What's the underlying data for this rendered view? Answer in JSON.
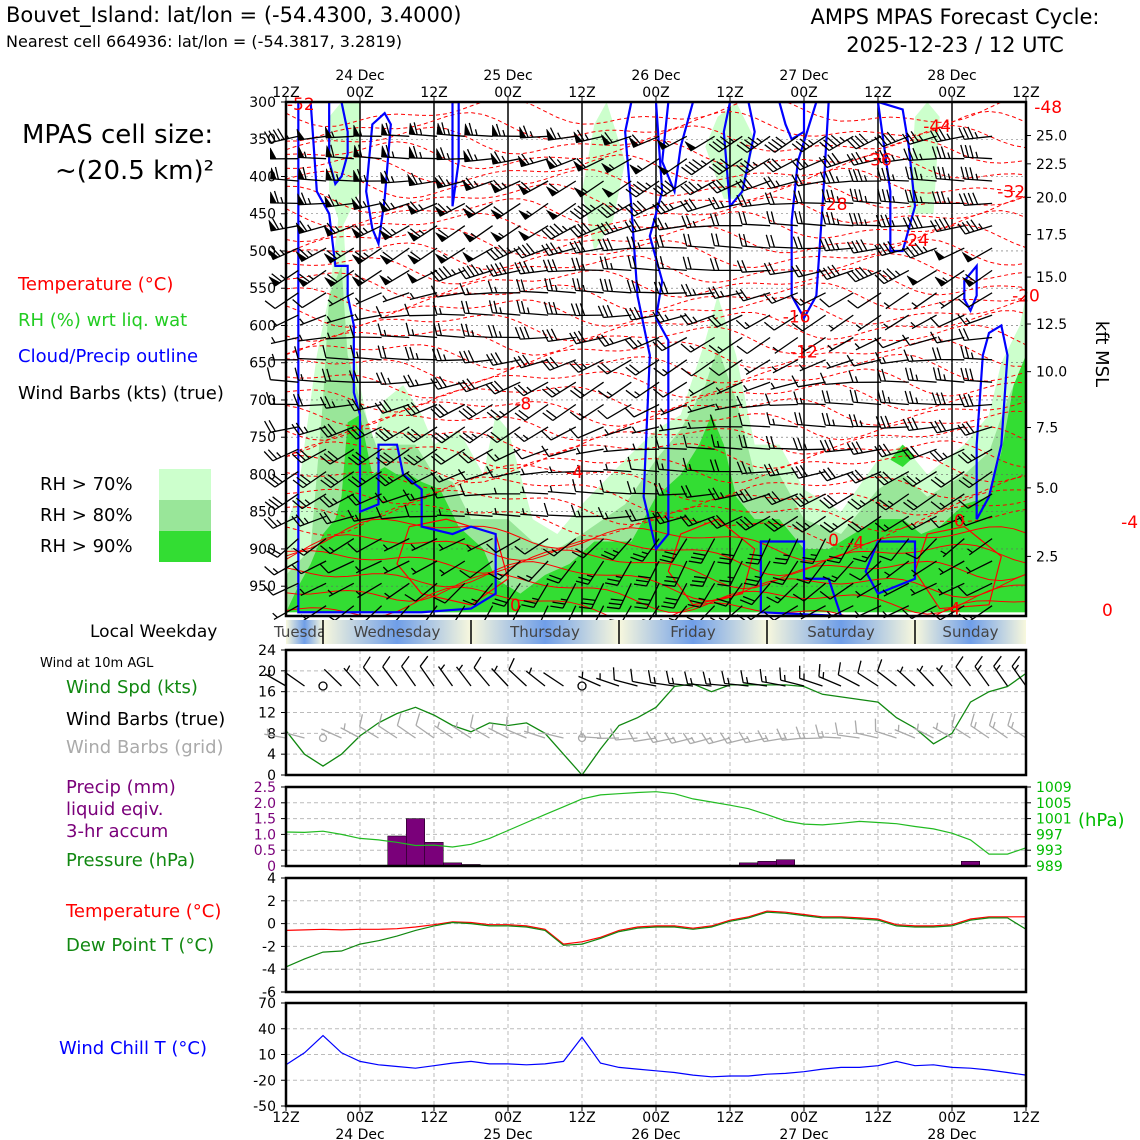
{
  "header": {
    "location_line": "Bouvet_Island: lat/lon = (-54.4300, 3.4000)",
    "nearest_line": "Nearest cell 664936: lat/lon = (-54.3817, 3.2819)",
    "forecast_title": "AMPS MPAS Forecast Cycle:",
    "forecast_cycle": "2025-12-23 / 12 UTC"
  },
  "cell_size": {
    "line1": "MPAS cell size:",
    "line2": "~(20.5 km)²"
  },
  "legend": {
    "temperature": "Temperature (°C)",
    "rh": "RH (%) wrt liq. wat",
    "cloud": "Cloud/Precip outline",
    "barbs": "Wind Barbs (kts) (true)",
    "rh70": "RH > 70%",
    "rh80": "RH > 80%",
    "rh90": "RH > 90%"
  },
  "colors": {
    "temperature": "#ff0000",
    "rh": "#22cc22",
    "cloud": "#0000ff",
    "rh70": "#ccffcc",
    "rh80": "#99e699",
    "rh90": "#33dd33",
    "precip": "#7a007a",
    "pressure": "#118811",
    "grey": "#aaaaaa"
  },
  "time_axis": {
    "ticks": [
      "12Z",
      "00Z",
      "12Z",
      "00Z",
      "12Z",
      "00Z",
      "12Z",
      "00Z",
      "12Z",
      "00Z",
      "12Z"
    ],
    "dates": [
      "24 Dec",
      "25 Dec",
      "26 Dec",
      "27 Dec",
      "28 Dec"
    ]
  },
  "weekdays": {
    "label": "Local Weekday",
    "days": [
      "Tuesday",
      "Wednesday",
      "Thursday",
      "Friday",
      "Saturday",
      "Sunday"
    ]
  },
  "profile": {
    "pressure_levels": [
      300,
      350,
      400,
      450,
      500,
      550,
      600,
      650,
      700,
      750,
      800,
      850,
      900,
      950
    ],
    "kft_ticks": [
      "25.0",
      "22.5",
      "20.0",
      "17.5",
      "15.0",
      "12.5",
      "10.0",
      "7.5",
      "5.0",
      "2.5"
    ],
    "kft_pressure": [
      345,
      383,
      428,
      478,
      535,
      598,
      662,
      737,
      818,
      910
    ],
    "kft_label": "kft MSL",
    "temp_labels": [
      {
        "text": "-52",
        "t": 0.2,
        "p": 303
      },
      {
        "text": "-48",
        "t": 10.3,
        "p": 307
      },
      {
        "text": "-44",
        "t": 8.8,
        "p": 332
      },
      {
        "text": "-36",
        "t": 8.0,
        "p": 377
      },
      {
        "text": "-32",
        "t": 9.8,
        "p": 420
      },
      {
        "text": "-28",
        "t": 7.4,
        "p": 437
      },
      {
        "text": "-24",
        "t": 8.5,
        "p": 485
      },
      {
        "text": "-20",
        "t": 10.0,
        "p": 560
      },
      {
        "text": "-16",
        "t": 6.9,
        "p": 588
      },
      {
        "text": "-12",
        "t": 7.0,
        "p": 635
      },
      {
        "text": "-8",
        "t": 3.2,
        "p": 705
      },
      {
        "text": "-4",
        "t": 3.9,
        "p": 797
      },
      {
        "text": "0",
        "t": 9.1,
        "p": 862
      },
      {
        "text": "-4",
        "t": 11.4,
        "p": 864
      },
      {
        "text": "0",
        "t": 7.4,
        "p": 888
      },
      {
        "text": "-4",
        "t": 7.7,
        "p": 891
      },
      {
        "text": "0",
        "t": 3.1,
        "p": 975
      },
      {
        "text": "-4",
        "t": 9.0,
        "p": 980
      },
      {
        "text": "0",
        "t": 11.1,
        "p": 982
      }
    ]
  },
  "wind10m": {
    "title": "Wind at 10m AGL",
    "spd_label": "Wind Spd (kts)",
    "barbs_true": "Wind Barbs (true)",
    "barbs_grid": "Wind Barbs (grid)",
    "yticks": [
      "0",
      "4",
      "8",
      "12",
      "16",
      "20",
      "24"
    ]
  },
  "precip_panel": {
    "l1": "Precip (mm)",
    "l2": "liquid eqiv.",
    "l3": "3-hr accum",
    "pressure_label": "Pressure (hPa)",
    "left_ticks": [
      "0",
      "0.5",
      "1.0",
      "1.5",
      "2.0",
      "2.5"
    ],
    "right_ticks": [
      "989",
      "993",
      "997",
      "1001",
      "1005",
      "1009"
    ],
    "right_unit": "(hPa)"
  },
  "temp_panel": {
    "temp_label": "Temperature (°C)",
    "dew_label": "Dew Point T (°C)",
    "yticks": [
      "-6",
      "-4",
      "-2",
      "0",
      "2",
      "4"
    ]
  },
  "chill_panel": {
    "label": "Wind Chill T (°C)",
    "yticks": [
      "-50",
      "-20",
      "10",
      "40",
      "70"
    ]
  },
  "chart_data": [
    {
      "type": "line",
      "title": "Wind at 10m AGL",
      "x_hours": [
        0,
        3,
        6,
        9,
        12,
        15,
        18,
        21,
        24,
        27,
        30,
        33,
        36,
        39,
        42,
        45,
        48,
        51,
        54,
        57,
        60,
        63,
        66,
        69,
        72,
        75,
        78,
        81,
        84,
        87,
        90,
        93,
        96,
        99,
        102,
        105,
        108,
        111,
        114,
        117,
        120
      ],
      "series": [
        {
          "name": "Wind Spd (kts)",
          "values": [
            8.5,
            4,
            1.7,
            4,
            7.5,
            10,
            11.8,
            13,
            11.5,
            9.5,
            8.3,
            10,
            9.5,
            10,
            8,
            4,
            0,
            5,
            9.5,
            11,
            13,
            17,
            17.5,
            16,
            17.3,
            17.3,
            17.3,
            17.3,
            17,
            15.5,
            15,
            14.5,
            14,
            11,
            9,
            6,
            8,
            14,
            16,
            17,
            19.5
          ]
        }
      ],
      "ylim": [
        0,
        24
      ]
    },
    {
      "type": "bar",
      "title": "Precip (mm) liquid eqiv. 3-hr accum",
      "x_hours": [
        18,
        21,
        24,
        27,
        30,
        75,
        78,
        81,
        111
      ],
      "values": [
        0.95,
        1.5,
        0.75,
        0.1,
        0.05,
        0.1,
        0.15,
        0.2,
        0.15
      ],
      "ylim": [
        0,
        2.5
      ]
    },
    {
      "type": "line",
      "title": "Pressure (hPa)",
      "x_hours": [
        0,
        3,
        6,
        9,
        12,
        15,
        18,
        21,
        24,
        27,
        30,
        33,
        36,
        39,
        42,
        45,
        48,
        51,
        54,
        57,
        60,
        63,
        66,
        69,
        72,
        75,
        78,
        81,
        84,
        87,
        90,
        93,
        96,
        99,
        102,
        105,
        108,
        111,
        114,
        117,
        120
      ],
      "series": [
        {
          "name": "Pressure (hPa)",
          "values": [
            997.6,
            997.5,
            997.8,
            997,
            996,
            995.6,
            995,
            994.2,
            994.3,
            993.8,
            994.5,
            996,
            998,
            1000,
            1002,
            1004,
            1006,
            1007,
            1007.3,
            1007.6,
            1007.8,
            1007.3,
            1006,
            1005.2,
            1004.4,
            1003.5,
            1002,
            1000.4,
            999.6,
            999.4,
            999.8,
            1000.3,
            1000,
            999.7,
            999,
            998.4,
            997.3,
            995.6,
            992,
            992,
            993.6
          ]
        }
      ],
      "ylim": [
        989,
        1009
      ]
    },
    {
      "type": "line",
      "title": "Temperature / Dew Point",
      "x_hours": [
        0,
        3,
        6,
        9,
        12,
        15,
        18,
        21,
        24,
        27,
        30,
        33,
        36,
        39,
        42,
        45,
        48,
        51,
        54,
        57,
        60,
        63,
        66,
        69,
        72,
        75,
        78,
        81,
        84,
        87,
        90,
        93,
        96,
        99,
        102,
        105,
        108,
        111,
        114,
        117,
        120
      ],
      "series": [
        {
          "name": "Temperature (°C)",
          "values": [
            -0.6,
            -0.55,
            -0.5,
            -0.55,
            -0.5,
            -0.5,
            -0.45,
            -0.3,
            -0.1,
            0.15,
            0.1,
            -0.1,
            -0.1,
            -0.2,
            -0.5,
            -1.8,
            -1.6,
            -1.2,
            -0.6,
            -0.3,
            -0.2,
            -0.2,
            -0.4,
            -0.2,
            0.3,
            0.6,
            1.1,
            1.0,
            0.8,
            0.6,
            0.6,
            0.5,
            0.4,
            -0.1,
            -0.2,
            -0.2,
            -0.1,
            0.4,
            0.6,
            0.6,
            0.6
          ]
        },
        {
          "name": "Dew Point T (°C)",
          "values": [
            -3.8,
            -3.1,
            -2.5,
            -2.4,
            -1.8,
            -1.5,
            -1.1,
            -0.6,
            -0.2,
            0.1,
            0,
            -0.2,
            -0.2,
            -0.3,
            -0.6,
            -1.9,
            -1.8,
            -1.3,
            -0.7,
            -0.4,
            -0.3,
            -0.3,
            -0.5,
            -0.3,
            0.2,
            0.5,
            1.0,
            0.9,
            0.7,
            0.5,
            0.5,
            0.4,
            0.3,
            -0.2,
            -0.3,
            -0.3,
            -0.2,
            0.3,
            0.5,
            0.5,
            -0.5
          ]
        }
      ],
      "ylim": [
        -6,
        4
      ]
    },
    {
      "type": "line",
      "title": "Wind Chill T (°C)",
      "x_hours": [
        0,
        3,
        6,
        9,
        12,
        15,
        18,
        21,
        24,
        27,
        30,
        33,
        36,
        39,
        42,
        45,
        48,
        51,
        54,
        57,
        60,
        63,
        66,
        69,
        72,
        75,
        78,
        81,
        84,
        87,
        90,
        93,
        96,
        99,
        102,
        105,
        108,
        111,
        114,
        117,
        120
      ],
      "series": [
        {
          "name": "Wind Chill T (°C)",
          "values": [
            -2,
            12,
            32,
            12,
            2,
            -2,
            -4,
            -6,
            -3,
            0,
            2,
            -1,
            -1,
            -2,
            -1,
            2,
            30,
            0,
            -5,
            -7,
            -9,
            -11,
            -14,
            -16,
            -15,
            -15,
            -13,
            -12,
            -10,
            -7,
            -5,
            -5,
            -3,
            2,
            -3,
            -2,
            -5,
            -6,
            -8,
            -11,
            -14
          ]
        }
      ],
      "ylim": [
        -50,
        70
      ]
    }
  ]
}
